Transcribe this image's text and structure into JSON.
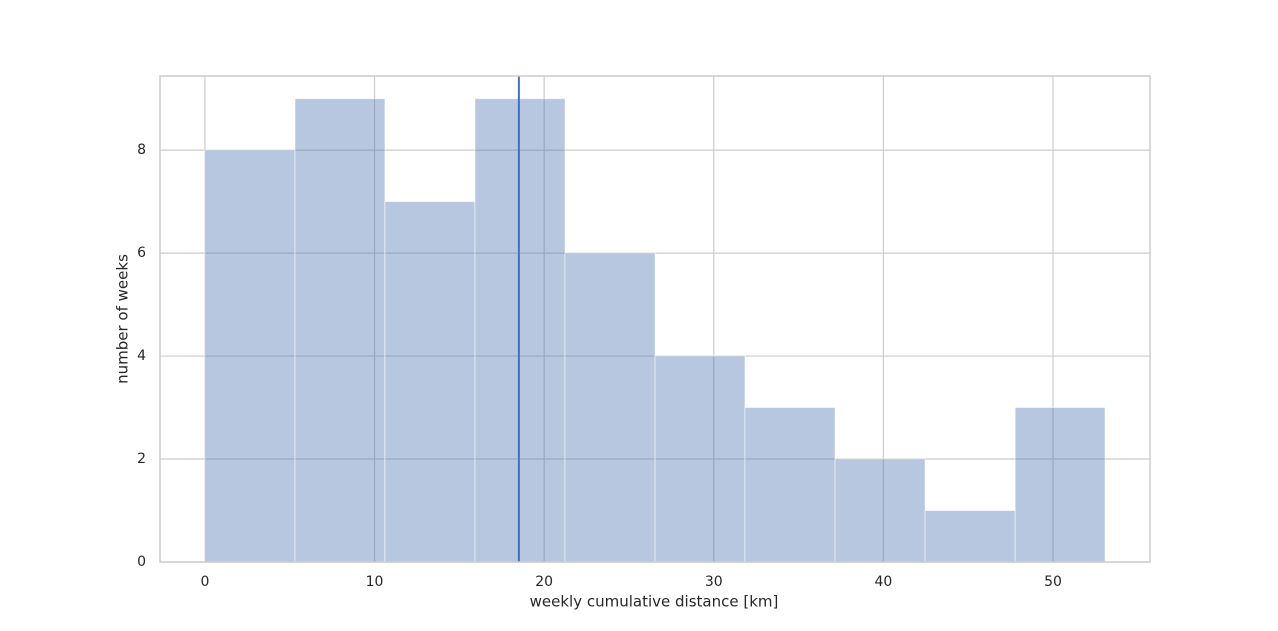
{
  "chart_data": {
    "type": "histogram",
    "xlabel": "weekly cumulative distance [km]",
    "ylabel": "number of weeks",
    "bins": [
      0,
      5.31,
      10.61,
      15.92,
      21.23,
      26.54,
      31.84,
      37.15,
      42.46,
      47.77,
      53.07
    ],
    "values": [
      8,
      9,
      7,
      9,
      6,
      4,
      3,
      2,
      1,
      3
    ],
    "color": "#4c72b0",
    "vline": 18.51,
    "vline_color": "#4470c4",
    "xlim": [
      -2.65,
      55.72
    ],
    "ylim": [
      0,
      9.44
    ],
    "xticks": [
      0,
      10,
      20,
      30,
      40,
      50
    ],
    "yticks": [
      0,
      2,
      4,
      6,
      8
    ],
    "grid": true
  }
}
